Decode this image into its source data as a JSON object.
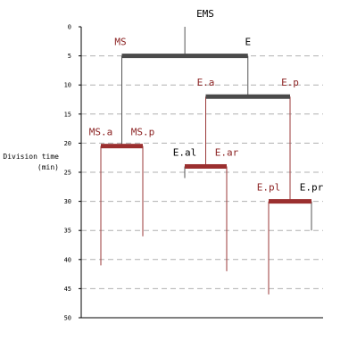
{
  "axis": {
    "label_line1": "Division time",
    "label_line2": "(min)",
    "min": 0,
    "max": 50,
    "ticks": [
      0,
      5,
      10,
      15,
      20,
      25,
      30,
      35,
      40,
      45,
      50
    ]
  },
  "colors": {
    "dark_bar": "#4a4a4a",
    "red_bar": "#9b2f2f",
    "red_line": "#9b3a3a",
    "black_line": "#555555",
    "grid": "#b0b0b0",
    "black_label": "#000000",
    "red_label": "#8b2222"
  },
  "lineage": {
    "root_label": "EMS",
    "nodes": [
      {
        "id": "EMS",
        "parent": null,
        "x_from": "MS",
        "x_to": "E",
        "division_time": 5,
        "bar": "dark"
      },
      {
        "id": "MS",
        "label": "MS",
        "label_color": "red",
        "parent": "EMS",
        "division_time": 20.5,
        "bar": "red",
        "line": "black"
      },
      {
        "id": "E",
        "label": "E",
        "label_color": "black",
        "parent": "EMS",
        "division_time": 12,
        "bar": "dark",
        "line": "black"
      },
      {
        "id": "MS.a",
        "label": "MS.a",
        "label_color": "red",
        "parent": "MS",
        "end_time": 41,
        "line": "red"
      },
      {
        "id": "MS.p",
        "label": "MS.p",
        "label_color": "red",
        "parent": "MS",
        "end_time": 36,
        "line": "red"
      },
      {
        "id": "E.a",
        "label": "E.a",
        "label_color": "red",
        "parent": "E",
        "division_time": 24,
        "bar": "red",
        "line": "red"
      },
      {
        "id": "E.p",
        "label": "E.p",
        "label_color": "red",
        "parent": "E",
        "division_time": 30,
        "bar": "red",
        "line": "red"
      },
      {
        "id": "E.al",
        "label": "E.al",
        "label_color": "black",
        "parent": "E.a",
        "end_time": 26,
        "line": "black"
      },
      {
        "id": "E.ar",
        "label": "E.ar",
        "label_color": "red",
        "parent": "E.a",
        "end_time": 42,
        "line": "red"
      },
      {
        "id": "E.pl",
        "label": "E.pl",
        "label_color": "red",
        "parent": "E.p",
        "end_time": 46,
        "line": "red"
      },
      {
        "id": "E.pr",
        "label": "E.pr",
        "label_color": "black",
        "parent": "E.p",
        "end_time": 35,
        "line": "black"
      }
    ]
  }
}
